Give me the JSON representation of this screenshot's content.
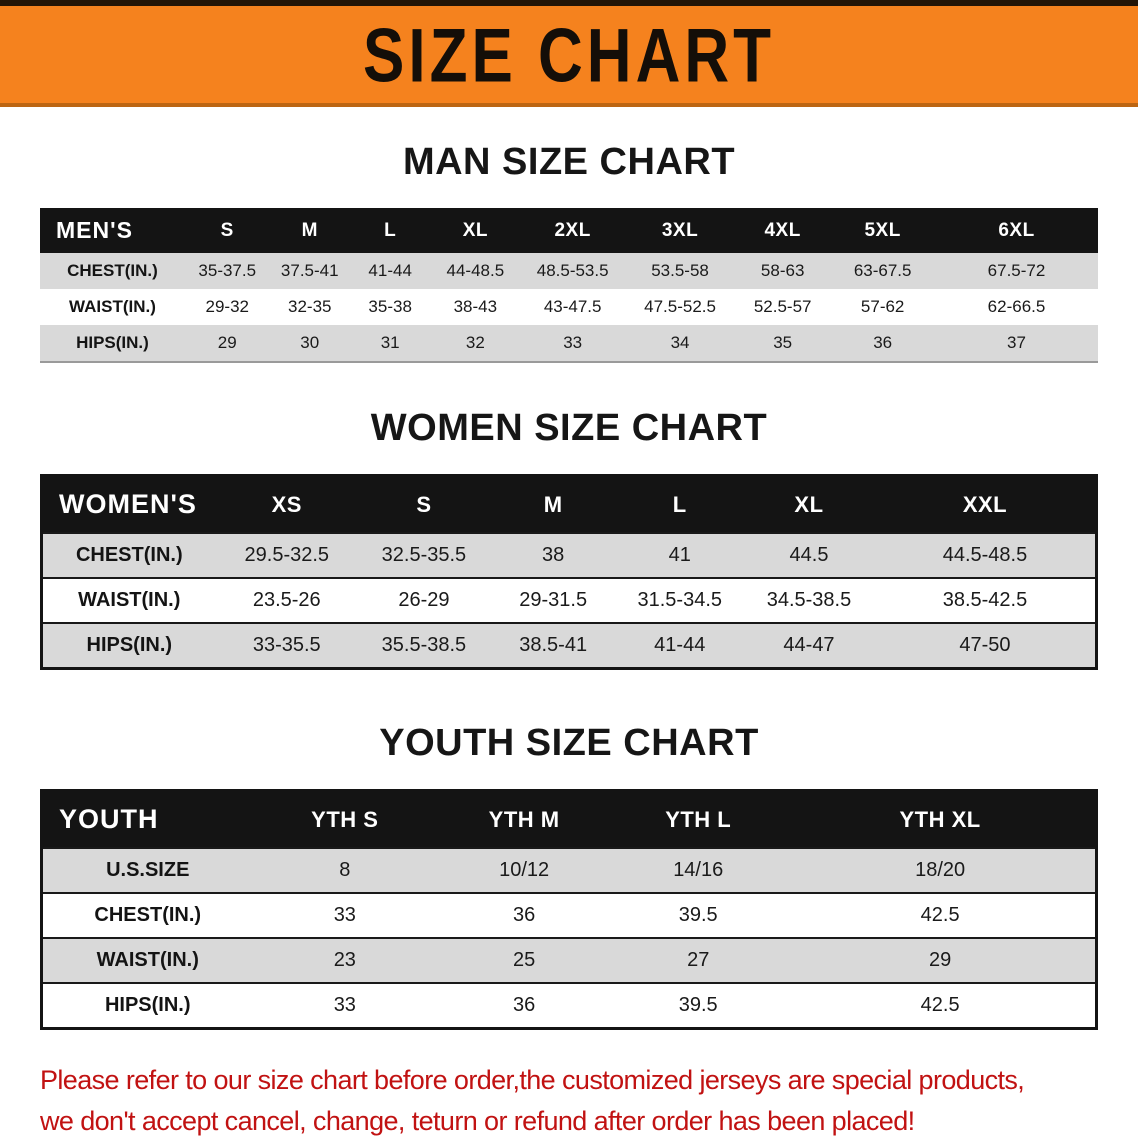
{
  "banner": {
    "title": "SIZE CHART"
  },
  "sections": [
    {
      "id": "men",
      "heading": "MAN SIZE CHART",
      "style": "plain",
      "table": {
        "header": [
          "MEN'S",
          "S",
          "M",
          "L",
          "XL",
          "2XL",
          "3XL",
          "4XL",
          "5XL",
          "6XL"
        ],
        "col_widths": [
          "13.7%",
          "8%",
          "7.6%",
          "7.6%",
          "8.5%",
          "9.9%",
          "10.4%",
          "9%",
          "9.9%",
          "15.4%"
        ],
        "rows": [
          [
            "CHEST(IN.)",
            "35-37.5",
            "37.5-41",
            "41-44",
            "44-48.5",
            "48.5-53.5",
            "53.5-58",
            "58-63",
            "63-67.5",
            "67.5-72"
          ],
          [
            "WAIST(IN.)",
            "29-32",
            "32-35",
            "35-38",
            "38-43",
            "43-47.5",
            "47.5-52.5",
            "52.5-57",
            "57-62",
            "62-66.5"
          ],
          [
            "HIPS(IN.)",
            "29",
            "30",
            "31",
            "32",
            "33",
            "34",
            "35",
            "36",
            "37"
          ]
        ]
      }
    },
    {
      "id": "women",
      "heading": "WOMEN SIZE CHART",
      "style": "bordered",
      "table": {
        "header": [
          "WOMEN'S",
          "XS",
          "S",
          "M",
          "L",
          "XL",
          "XXL"
        ],
        "col_widths": [
          "16.5%",
          "13.5%",
          "12.5%",
          "12%",
          "12%",
          "12.5%",
          "21%"
        ],
        "rows": [
          [
            "CHEST(IN.)",
            "29.5-32.5",
            "32.5-35.5",
            "38",
            "41",
            "44.5",
            "44.5-48.5"
          ],
          [
            "WAIST(IN.)",
            "23.5-26",
            "26-29",
            "29-31.5",
            "31.5-34.5",
            "34.5-38.5",
            "38.5-42.5"
          ],
          [
            "HIPS(IN.)",
            "33-35.5",
            "35.5-38.5",
            "38.5-41",
            "41-44",
            "44-47",
            "47-50"
          ]
        ]
      }
    },
    {
      "id": "youth",
      "heading": "YOUTH SIZE CHART",
      "style": "bordered",
      "table": {
        "header": [
          "YOUTH",
          "YTH S",
          "YTH M",
          "YTH L",
          "YTH XL"
        ],
        "col_widths": [
          "20%",
          "17.5%",
          "16.5%",
          "16.5%",
          "29.5%"
        ],
        "rows": [
          [
            "U.S.SIZE",
            "8",
            "10/12",
            "14/16",
            "18/20"
          ],
          [
            "CHEST(IN.)",
            "33",
            "36",
            "39.5",
            "42.5"
          ],
          [
            "WAIST(IN.)",
            "23",
            "25",
            "27",
            "29"
          ],
          [
            "HIPS(IN.)",
            "33",
            "36",
            "39.5",
            "42.5"
          ]
        ]
      }
    }
  ],
  "disclaimer": {
    "line1": "Please refer to our size chart before order,the customized jerseys are special products,",
    "line2": "we don't accept cancel, change, teturn or refund after order has been placed!"
  },
  "colors": {
    "banner_orange": "#f5821e",
    "header_black": "#141414",
    "row_gray": "#d9d9d9",
    "disclaimer_red": "#c11212"
  }
}
